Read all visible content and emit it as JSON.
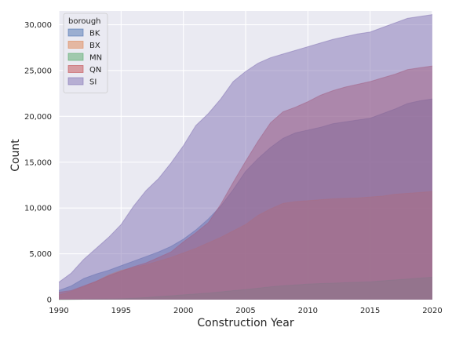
{
  "chart_data": {
    "type": "area",
    "xlabel": "Construction Year",
    "ylabel": "Count",
    "xlim": [
      1990,
      2020
    ],
    "ylim": [
      0,
      31500
    ],
    "x_ticks": [
      1990,
      1995,
      2000,
      2005,
      2010,
      2015,
      2020
    ],
    "x_tick_labels": [
      "1990",
      "1995",
      "2000",
      "2005",
      "2010",
      "2015",
      "2020"
    ],
    "y_ticks": [
      0,
      5000,
      10000,
      15000,
      20000,
      25000,
      30000
    ],
    "y_tick_labels": [
      "0",
      "5,000",
      "10,000",
      "15,000",
      "20,000",
      "25,000",
      "30,000"
    ],
    "grid": true,
    "legend": {
      "title": "borough",
      "placement": "top-left"
    },
    "x": [
      1990,
      1991,
      1992,
      1993,
      1994,
      1995,
      1996,
      1997,
      1998,
      1999,
      2000,
      2001,
      2002,
      2003,
      2004,
      2005,
      2006,
      2007,
      2008,
      2009,
      2010,
      2011,
      2012,
      2013,
      2014,
      2015,
      2016,
      2017,
      2018,
      2019,
      2020
    ],
    "series": [
      {
        "name": "BK",
        "color": "#4c72b0",
        "values": [
          1000,
          1500,
          2300,
          2800,
          3200,
          3700,
          4200,
          4700,
          5200,
          5800,
          6600,
          7600,
          8800,
          10200,
          12000,
          14000,
          15400,
          16600,
          17600,
          18200,
          18500,
          18800,
          19200,
          19400,
          19600,
          19800,
          20300,
          20800,
          21400,
          21700,
          21900
        ]
      },
      {
        "name": "BX",
        "color": "#dd8452",
        "values": [
          500,
          900,
          1400,
          2000,
          2700,
          3200,
          3500,
          3800,
          4200,
          4600,
          5100,
          5600,
          6200,
          6800,
          7500,
          8200,
          9200,
          9900,
          10500,
          10700,
          10800,
          10900,
          11000,
          11050,
          11100,
          11200,
          11300,
          11500,
          11600,
          11700,
          11800
        ]
      },
      {
        "name": "MN",
        "color": "#55a868",
        "values": [
          10,
          20,
          40,
          60,
          80,
          100,
          150,
          220,
          330,
          420,
          520,
          620,
          720,
          850,
          980,
          1100,
          1250,
          1400,
          1520,
          1600,
          1700,
          1750,
          1800,
          1850,
          1900,
          1950,
          2050,
          2150,
          2250,
          2350,
          2450
        ]
      },
      {
        "name": "QN",
        "color": "#c44e52",
        "values": [
          800,
          1000,
          1500,
          2000,
          2600,
          3100,
          3600,
          4000,
          4600,
          5200,
          6300,
          7300,
          8400,
          10400,
          12800,
          15100,
          17300,
          19300,
          20500,
          21000,
          21600,
          22300,
          22800,
          23200,
          23500,
          23800,
          24200,
          24600,
          25100,
          25300,
          25500
        ]
      },
      {
        "name": "SI",
        "color": "#8172b3",
        "values": [
          1900,
          2900,
          4400,
          5600,
          6800,
          8200,
          10200,
          11900,
          13200,
          14900,
          16800,
          19000,
          20300,
          21900,
          23800,
          24900,
          25800,
          26400,
          26800,
          27200,
          27600,
          28000,
          28400,
          28700,
          29000,
          29200,
          29700,
          30200,
          30700,
          30900,
          31100
        ]
      }
    ]
  }
}
